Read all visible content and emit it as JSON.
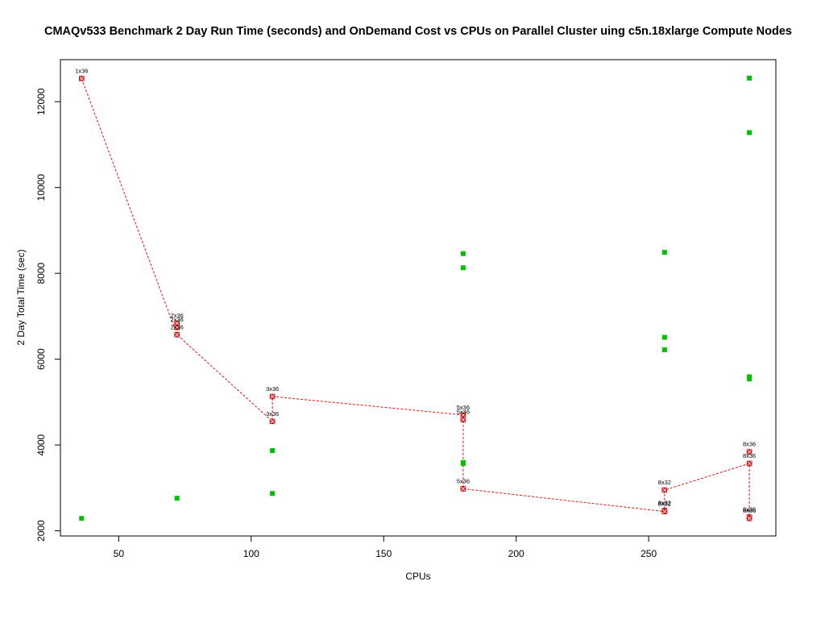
{
  "chart_data": {
    "type": "scatter",
    "title": "CMAQv533 Benchmark 2 Day Run Time (seconds) and OnDemand Cost vs CPUs on Parallel Cluster uing c5n.18xlarge Compute Nodes",
    "xlabel": "CPUs",
    "ylabel": "2 Day Total Time (sec)",
    "xlim": [
      28,
      298
    ],
    "ylim": [
      1880,
      12980
    ],
    "xticks": [
      50,
      100,
      150,
      200,
      250
    ],
    "yticks": [
      2000,
      4000,
      6000,
      8000,
      10000,
      12000
    ],
    "grid": false,
    "legend": "none",
    "colors": {
      "time": "#ee1111",
      "cost": "#00c000",
      "line": "#ee1111"
    },
    "series": [
      {
        "name": "",
        "marker": "red-crossed-square",
        "points": [
          {
            "x": 36,
            "y": 12540,
            "label": "1x36"
          },
          {
            "x": 72,
            "y": 6840,
            "label": "2x36"
          },
          {
            "x": 72,
            "y": 6740,
            "label": "2x36"
          },
          {
            "x": 72,
            "y": 6570,
            "label": "2x36"
          },
          {
            "x": 108,
            "y": 5130,
            "label": "3x36"
          },
          {
            "x": 108,
            "y": 4550,
            "label": "3x36"
          },
          {
            "x": 180,
            "y": 4700,
            "label": "5x36"
          },
          {
            "x": 180,
            "y": 4590,
            "label": "5x36"
          },
          {
            "x": 180,
            "y": 2980,
            "label": "5x36"
          },
          {
            "x": 256,
            "y": 2950,
            "label": "8x32"
          },
          {
            "x": 256,
            "y": 2470,
            "label": "8x32"
          },
          {
            "x": 256,
            "y": 2450,
            "label": "8x32"
          },
          {
            "x": 288,
            "y": 3840,
            "label": "8x36"
          },
          {
            "x": 288,
            "y": 3570,
            "label": "8x36"
          },
          {
            "x": 288,
            "y": 2320,
            "label": "8x36"
          },
          {
            "x": 288,
            "y": 2290,
            "label": "8x36"
          }
        ]
      },
      {
        "name": "",
        "marker": "green-square",
        "points": [
          {
            "x": 36,
            "y": 2290
          },
          {
            "x": 72,
            "y": 2760
          },
          {
            "x": 108,
            "y": 3870
          },
          {
            "x": 108,
            "y": 2870
          },
          {
            "x": 180,
            "y": 8460
          },
          {
            "x": 180,
            "y": 8130
          },
          {
            "x": 180,
            "y": 3590
          },
          {
            "x": 180,
            "y": 3570
          },
          {
            "x": 256,
            "y": 8490
          },
          {
            "x": 256,
            "y": 6510
          },
          {
            "x": 256,
            "y": 6220
          },
          {
            "x": 288,
            "y": 12550
          },
          {
            "x": 288,
            "y": 11280
          },
          {
            "x": 288,
            "y": 5590
          },
          {
            "x": 288,
            "y": 5540
          }
        ]
      }
    ],
    "lines": [
      {
        "points": [
          [
            36,
            12540
          ],
          [
            72,
            6570
          ],
          [
            108,
            4550
          ],
          [
            108,
            5130
          ],
          [
            180,
            4700
          ],
          [
            180,
            2980
          ],
          [
            256,
            2450
          ],
          [
            256,
            2950
          ],
          [
            288,
            3570
          ],
          [
            288,
            2290
          ]
        ]
      }
    ]
  }
}
